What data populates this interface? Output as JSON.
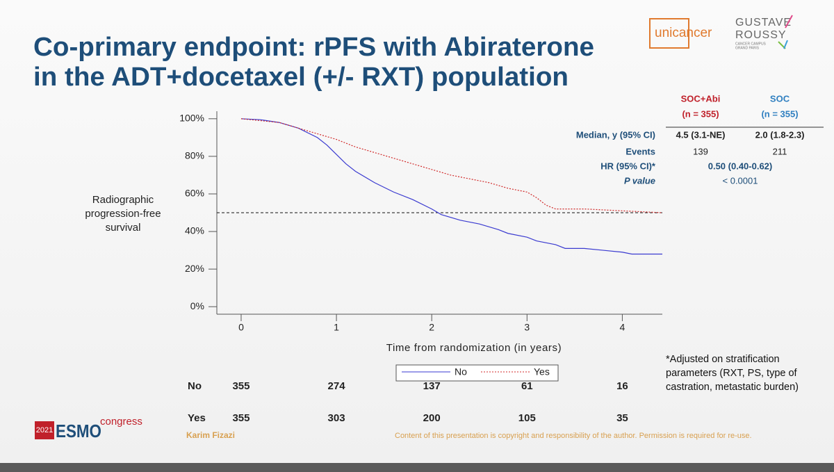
{
  "header": {
    "title_lines": [
      "Co-primary endpoint: rPFS with Abiraterone",
      "in the ADT+docetaxel (+/- RXT) population"
    ]
  },
  "logos": {
    "unicancer": "unicancer",
    "gr_top": "GUSTAVE",
    "gr_bottom": "ROUSSY",
    "gr_sub1": "CANCER CAMPUS",
    "gr_sub2": "GRAND PARIS",
    "esmo_year": "2021",
    "esmo": "ESMO",
    "esmo_sub": "congress"
  },
  "chart_data": {
    "type": "line",
    "step": false,
    "x_label": "Time from randomization (in years)",
    "y_label": "Radiographic progression-free survival",
    "xlim": [
      -0.255,
      4.42
    ],
    "xticks": [
      0,
      1,
      2,
      3,
      4
    ],
    "ylim": [
      -4,
      104
    ],
    "yticks": [
      {
        "value": 0,
        "label": "0%"
      },
      {
        "value": 20,
        "label": "20%"
      },
      {
        "value": 40,
        "label": "40%"
      },
      {
        "value": 60,
        "label": "60%"
      },
      {
        "value": 80,
        "label": "80%"
      },
      {
        "value": 100,
        "label": "100%"
      }
    ],
    "ref_line": 50,
    "legend": "bottom",
    "series": [
      {
        "name": "No",
        "color": "#3a3ad0",
        "dash": false,
        "x": [
          0,
          0.2,
          0.4,
          0.6,
          0.8,
          0.9,
          1.0,
          1.1,
          1.2,
          1.4,
          1.6,
          1.8,
          2.0,
          2.1,
          2.3,
          2.5,
          2.7,
          2.8,
          3.0,
          3.1,
          3.3,
          3.4,
          3.6,
          3.8,
          4.0,
          4.1,
          4.42
        ],
        "values": [
          100,
          99.5,
          98,
          95,
          90,
          86,
          81,
          76,
          72,
          66,
          61,
          57,
          52,
          49,
          46,
          44,
          41,
          39,
          37,
          35,
          33,
          31,
          31,
          30,
          29,
          28,
          28
        ]
      },
      {
        "name": "Yes",
        "color": "#d02828",
        "dash": true,
        "x": [
          0,
          0.4,
          0.6,
          0.8,
          1.0,
          1.2,
          1.4,
          1.6,
          1.8,
          2.0,
          2.2,
          2.4,
          2.6,
          2.8,
          3.0,
          3.1,
          3.2,
          3.3,
          3.6,
          4.0,
          4.42
        ],
        "values": [
          100,
          98,
          95,
          92,
          89,
          85,
          82,
          79,
          76,
          73,
          70,
          68,
          66,
          63,
          61,
          58,
          54,
          52,
          52,
          51,
          50
        ]
      }
    ]
  },
  "risk_table": {
    "rows": [
      {
        "label": "No",
        "values": [
          355,
          274,
          137,
          61,
          16
        ]
      },
      {
        "label": "Yes",
        "values": [
          355,
          303,
          200,
          105,
          35
        ]
      }
    ]
  },
  "results_table": {
    "columns": [
      {
        "name": "SOC+Abi",
        "n": "(n = 355)",
        "color": "#c0202a"
      },
      {
        "name": "SOC",
        "n": "(n = 355)",
        "color": "#2f7fc0"
      }
    ],
    "rows": [
      {
        "label": "Median, y (95% CI)",
        "cells": [
          "4.5 (3.1-NE)",
          "2.0 (1.8-2.3)"
        ]
      },
      {
        "label": "Events",
        "cells": [
          "139",
          "211"
        ]
      },
      {
        "label": "HR (95% CI)*",
        "cells": [
          "0.50 (0.40-0.62)"
        ]
      },
      {
        "label": "P value",
        "cells": [
          "< 0.0001"
        ]
      }
    ]
  },
  "footnote": "*Adjusted on stratification parameters (RXT, PS, type of castration, metastatic burden)",
  "footer": {
    "author": "Karim Fizazi",
    "copyright": "Content of this presentation is copyright and responsibility of the author. Permission is required for re-use."
  }
}
